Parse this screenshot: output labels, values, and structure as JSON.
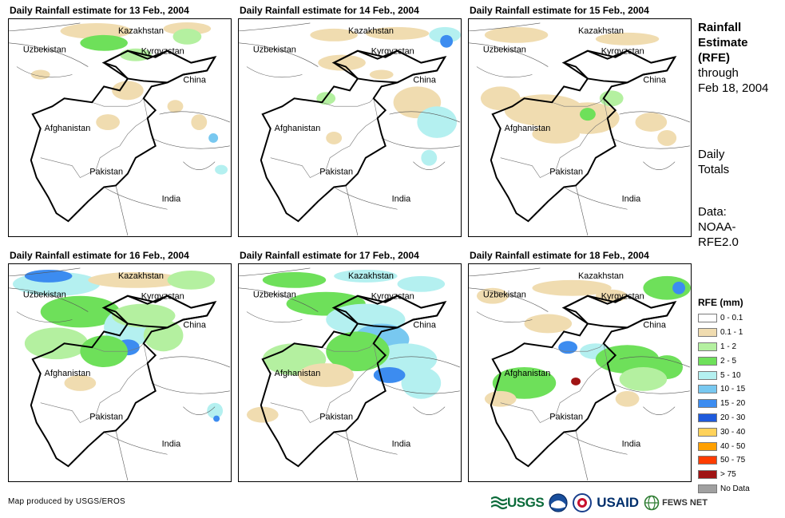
{
  "panels": [
    {
      "title": "Daily Rainfall estimate for 13 Feb., 2004"
    },
    {
      "title": "Daily Rainfall estimate for 14 Feb., 2004"
    },
    {
      "title": "Daily Rainfall estimate for 15 Feb., 2004"
    },
    {
      "title": "Daily Rainfall estimate for 16 Feb., 2004"
    },
    {
      "title": "Daily Rainfall estimate for 17 Feb., 2004"
    },
    {
      "title": "Daily Rainfall estimate for 18 Feb., 2004"
    }
  ],
  "country_labels": {
    "kazakhstan": "Kazakhstan",
    "uzbekistan": "Uzbekistan",
    "kyrgyzstan": "Kyrgyzstan",
    "china": "China",
    "afghanistan": "Afghanistan",
    "pakistan": "Pakistan",
    "india": "India"
  },
  "side": {
    "title_line1": "Rainfall",
    "title_line2": "Estimate",
    "title_line3": "(RFE)",
    "title_line4": "through",
    "title_line5": "Feb 18, 2004",
    "daily_line1": "Daily",
    "daily_line2": "Totals",
    "data_line1": "Data:",
    "data_line2": "NOAA-",
    "data_line3": "RFE2.0"
  },
  "legend": {
    "title": "RFE (mm)",
    "items": [
      {
        "label": "0 - 0.1",
        "color": "#ffffff"
      },
      {
        "label": "0.1 - 1",
        "color": "#f0dcb0"
      },
      {
        "label": "1 - 2",
        "color": "#b4f0a0"
      },
      {
        "label": "2 - 5",
        "color": "#6ee05a"
      },
      {
        "label": "5 - 10",
        "color": "#b4f0f0"
      },
      {
        "label": "10 - 15",
        "color": "#78c8f0"
      },
      {
        "label": "15 - 20",
        "color": "#3c8cf0"
      },
      {
        "label": "20 - 30",
        "color": "#1e5adc"
      },
      {
        "label": "30 - 40",
        "color": "#ffd25a"
      },
      {
        "label": "40 - 50",
        "color": "#ffa000"
      },
      {
        "label": "50 - 75",
        "color": "#ff3c00"
      },
      {
        "label": "> 75",
        "color": "#a01414"
      },
      {
        "label": "No Data",
        "color": "#a0a0a0"
      }
    ]
  },
  "credit": "Map produced by USGS/EROS",
  "logos": {
    "usgs": "USGS",
    "usaid": "USAID",
    "fews": "FEWS NET"
  }
}
